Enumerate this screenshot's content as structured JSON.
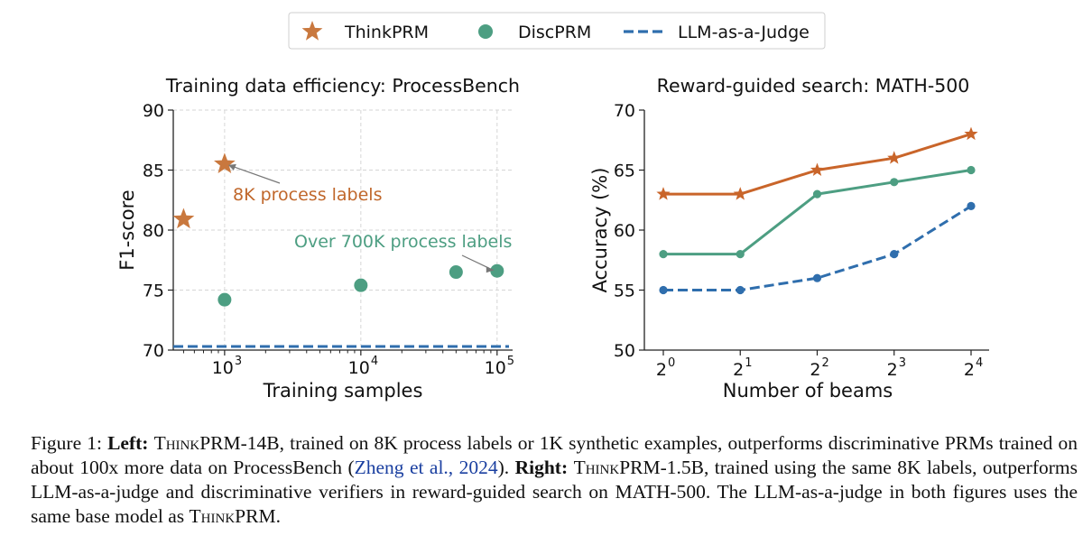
{
  "legend": {
    "items": [
      {
        "label": "ThinkPRM",
        "marker": "star",
        "color": "#c9783e"
      },
      {
        "label": "DiscPRM",
        "marker": "circle",
        "color": "#4d9e82"
      },
      {
        "label": "LLM-as-a-Judge",
        "marker": "dashed-line",
        "color": "#2f6ead"
      }
    ]
  },
  "chart_data": [
    {
      "type": "scatter",
      "title": "Training data efficiency: ProcessBench",
      "xlabel": "Training samples",
      "ylabel": "F1-score",
      "xscale": "log",
      "xlim": [
        420,
        130000
      ],
      "ylim": [
        70,
        90
      ],
      "yticks": [
        "70",
        "75",
        "80",
        "85",
        "90"
      ],
      "xticks": [
        {
          "value": 1000,
          "base": "10",
          "exp": "3"
        },
        {
          "value": 10000,
          "base": "10",
          "exp": "4"
        },
        {
          "value": 100000,
          "base": "10",
          "exp": "5"
        }
      ],
      "grid": true,
      "series": [
        {
          "name": "ThinkPRM",
          "marker": "star",
          "color": "#c9783e",
          "x": [
            500,
            1000
          ],
          "y": [
            80.9,
            85.5
          ]
        },
        {
          "name": "DiscPRM",
          "marker": "circle",
          "color": "#4d9e82",
          "x": [
            1000,
            10000,
            50000,
            100000
          ],
          "y": [
            74.2,
            75.4,
            76.5,
            76.6
          ]
        },
        {
          "name": "LLM-as-a-Judge",
          "marker": "dashed-line",
          "color": "#2f6ead",
          "hline": 70.3
        }
      ],
      "annotations": [
        {
          "text": "8K process labels",
          "color": "#c0672b",
          "target": {
            "x": 1000,
            "y": 85.5
          }
        },
        {
          "text": "Over 700K process labels",
          "color": "#4d9e82",
          "target": {
            "x": 100000,
            "y": 76.6
          }
        }
      ]
    },
    {
      "type": "line",
      "title": "Reward-guided search: MATH-500",
      "xlabel": "Number of beams",
      "ylabel": "Accuracy (%)",
      "categories": [
        {
          "base": "2",
          "exp": "0"
        },
        {
          "base": "2",
          "exp": "1"
        },
        {
          "base": "2",
          "exp": "2"
        },
        {
          "base": "2",
          "exp": "3"
        },
        {
          "base": "2",
          "exp": "4"
        }
      ],
      "x": [
        1,
        2,
        4,
        8,
        16
      ],
      "ylim": [
        50,
        70
      ],
      "yticks": [
        "50",
        "55",
        "60",
        "65",
        "70"
      ],
      "grid": false,
      "series": [
        {
          "name": "ThinkPRM",
          "marker": "star",
          "color": "#c9652a",
          "values": [
            63,
            63,
            65,
            66,
            68
          ]
        },
        {
          "name": "DiscPRM",
          "marker": "circle",
          "color": "#4d9e82",
          "values": [
            58,
            58,
            63,
            64,
            65
          ]
        },
        {
          "name": "LLM-as-a-Judge",
          "marker": "circle",
          "dashed": true,
          "color": "#2f6ead",
          "values": [
            55,
            55,
            56,
            58,
            62
          ]
        }
      ]
    }
  ],
  "caption": {
    "label": "Figure 1:",
    "left_heading": "Left:",
    "model_left": "ThinkPRM",
    "text_1": "-14B, trained on 8K process labels or 1K synthetic examples, outperforms discriminative PRMs trained on about 100x more data on ProcessBench (",
    "citation": "Zheng et al., 2024",
    "text_2": ").",
    "right_heading": "Right:",
    "model_right": "ThinkPRM",
    "text_3": "-1.5B, trained using the same 8K labels, outperforms LLM-as-a-judge and discriminative verifiers in reward-guided search on MATH-500. The LLM-as-a-judge in both figures uses the same base model as",
    "model_end": "ThinkPRM",
    "text_end": "."
  }
}
